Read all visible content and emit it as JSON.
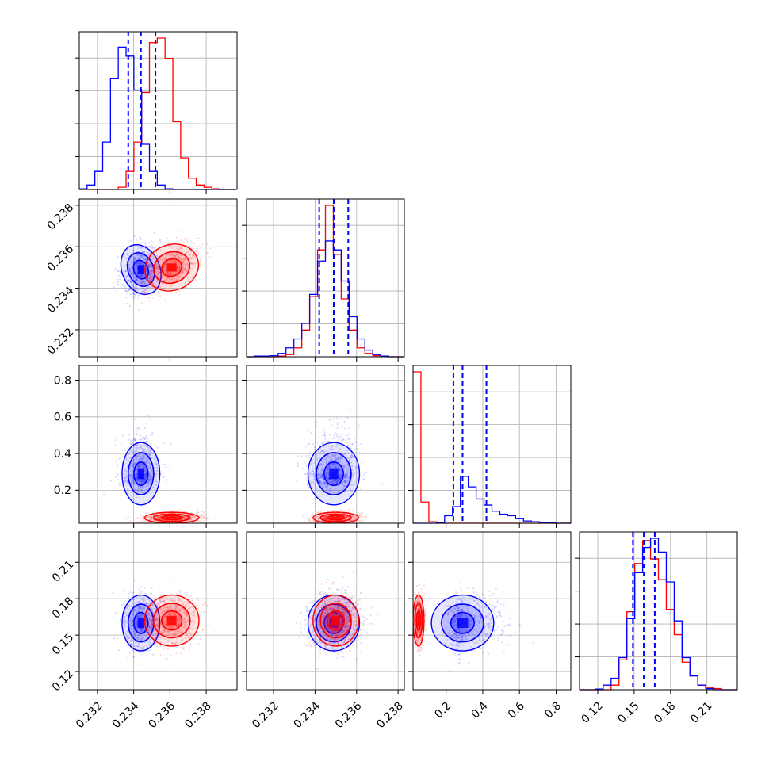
{
  "chart_data": {
    "type": "corner",
    "grid": true,
    "parameters": [
      {
        "range": [
          0.231,
          0.2397
        ],
        "ticks": [
          0.232,
          0.234,
          0.236,
          0.238
        ],
        "tick_labels": [
          "0.232",
          "0.234",
          "0.236",
          "0.238"
        ]
      },
      {
        "range": [
          0.2307,
          0.2383
        ],
        "ticks": [
          0.232,
          0.234,
          0.236,
          0.238
        ],
        "tick_labels": [
          "0.232",
          "0.234",
          "0.236",
          "0.238"
        ]
      },
      {
        "range": [
          0.02,
          0.88
        ],
        "ticks": [
          0.2,
          0.4,
          0.6,
          0.8
        ],
        "tick_labels": [
          "0.2",
          "0.4",
          "0.6",
          "0.8"
        ]
      },
      {
        "range": [
          0.105,
          0.235
        ],
        "ticks": [
          0.12,
          0.15,
          0.18,
          0.21
        ],
        "tick_labels": [
          "0.12",
          "0.15",
          "0.18",
          "0.21"
        ]
      }
    ],
    "series": [
      {
        "color": "#0000ff",
        "means": [
          0.2344,
          0.2349,
          0.29,
          0.16
        ],
        "sigmas": [
          0.00052,
          0.00062,
          0.085,
          0.0115
        ],
        "quantiles_shown": true,
        "quantiles": [
          [
            0.2337,
            0.2344,
            0.2352
          ],
          [
            0.2342,
            0.2349,
            0.2356
          ],
          [
            0.24,
            0.29,
            0.42
          ],
          [
            0.149,
            0.158,
            0.167
          ]
        ]
      },
      {
        "color": "#ff0000",
        "means": [
          0.2361,
          0.235,
          0.05,
          0.162
        ],
        "sigmas": [
          0.00075,
          0.00055,
          0.015,
          0.0105
        ],
        "quantiles_shown": false
      }
    ],
    "histograms": [
      {
        "param": 0,
        "bins": [
          0.231,
          0.2396
        ],
        "blue": [
          0.3,
          2,
          8,
          21,
          49,
          63,
          59,
          44,
          20,
          8,
          2,
          0.3,
          0,
          0,
          0,
          0,
          0,
          0,
          0,
          0
        ],
        "red": [
          0,
          0,
          0,
          0,
          0,
          1,
          8,
          21,
          43,
          65,
          67,
          58,
          30,
          14,
          5,
          2,
          1,
          0.3,
          0,
          0
        ]
      },
      {
        "param": 1,
        "bins": [
          0.2307,
          0.2383
        ],
        "blue": [
          0,
          0.3,
          0.3,
          0.5,
          1.5,
          4,
          8,
          15,
          28,
          43,
          52,
          48,
          34,
          18,
          8,
          3,
          1,
          0.3,
          0,
          0
        ],
        "red": [
          0,
          0,
          0,
          0,
          0.3,
          1,
          4,
          12,
          27,
          48,
          68,
          46,
          26,
          12,
          4,
          1.5,
          0.5,
          0.2,
          0,
          0
        ]
      },
      {
        "param": 2,
        "bins": [
          0.02,
          0.88
        ],
        "blue": [
          0,
          0,
          0,
          0.5,
          5,
          11,
          31,
          24,
          16,
          12,
          8,
          6,
          5,
          3,
          1.5,
          1,
          0.5,
          0.3,
          0,
          0
        ],
        "red": [
          100,
          14,
          1,
          0,
          0,
          0,
          0,
          0,
          0,
          0,
          0,
          0,
          0,
          0,
          0,
          0,
          0,
          0,
          0,
          0
        ]
      },
      {
        "param": 3,
        "bins": [
          0.105,
          0.235
        ],
        "blue": [
          0,
          0,
          0.3,
          2,
          5,
          14,
          31,
          51,
          62,
          66,
          60,
          47,
          30,
          14,
          6,
          2,
          0.5,
          0,
          0,
          0
        ],
        "red": [
          0,
          0,
          0,
          0,
          2,
          13,
          34,
          55,
          65,
          57,
          48,
          35,
          24,
          12,
          6,
          2,
          1,
          0.5,
          0,
          0
        ]
      }
    ]
  }
}
